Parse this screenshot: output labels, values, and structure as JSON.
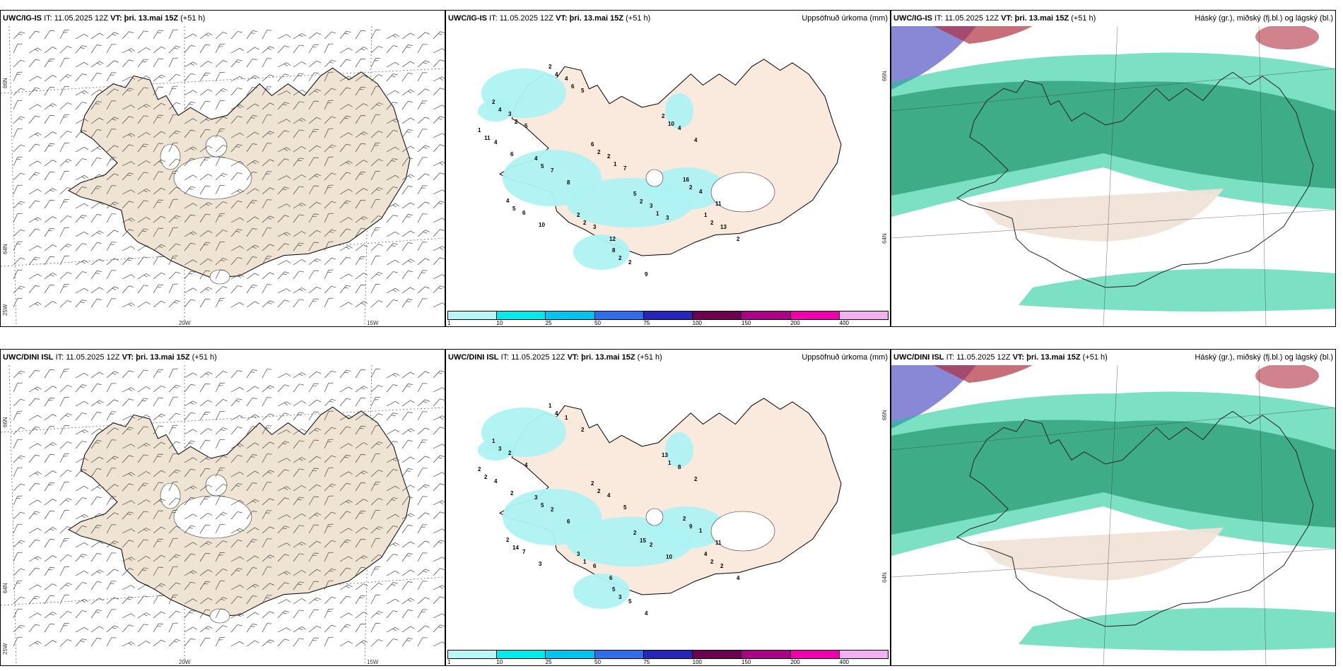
{
  "rows": [
    {
      "model": "UWC/IG-IS",
      "it_label": "IT:",
      "it_value": "11.05.2025 12Z",
      "vt_label": "VT:",
      "vt_value": "þri. 13.mai 15Z",
      "lead": "(+51 h)",
      "precip_title": "Uppsöfnuð úrkoma (mm)",
      "cloud_title": "Háský (gr.), miðský (fj.bl.) og lágský (bl.)",
      "precip_values": [
        "2",
        "2",
        "6",
        "5",
        "16",
        "8",
        "4",
        "4",
        "2",
        "2",
        "1",
        "1",
        "3",
        "4",
        "2",
        "3",
        "4",
        "2",
        "7",
        "6",
        "4",
        "3",
        "13",
        "4",
        "5",
        "5",
        "7",
        "3",
        "11",
        "9",
        "8",
        "10",
        "4",
        "12",
        "2",
        "6",
        "4",
        "4",
        "2",
        "2",
        "2",
        "2",
        "5",
        "5",
        "10",
        "2",
        "2",
        "11",
        "2",
        "6",
        "1",
        "1"
      ]
    },
    {
      "model": "UWC/DINI ISL",
      "it_label": "IT:",
      "it_value": "11.05.2025 12Z",
      "vt_label": "VT:",
      "vt_value": "þri. 13.mai 15Z",
      "lead": "(+51 h)",
      "precip_title": "Uppsöfnuð úrkoma (mm)",
      "cloud_title": "Háský (gr.), miðský (fj.bl.) og lágský (bl.)",
      "precip_values": [
        "1",
        "1",
        "2",
        "2",
        "2",
        "5",
        "3",
        "2",
        "13",
        "3",
        "4",
        "2",
        "2",
        "1",
        "4",
        "2",
        "1",
        "5",
        "2",
        "7",
        "8",
        "6",
        "2",
        "4",
        "4",
        "2",
        "5",
        "10",
        "11",
        "4",
        "6",
        "3",
        "2",
        "6",
        "4",
        "2",
        "3",
        "4",
        "2",
        "15",
        "9",
        "3",
        "5",
        "14",
        "1",
        "1",
        "2",
        "2"
      ]
    }
  ],
  "axes": {
    "lat_top": "66N",
    "lat_bottom": "64N",
    "lon_left": "25W",
    "lon_mid": "20W",
    "lon_right": "15W"
  },
  "colorbar": {
    "labels": [
      "1",
      "10",
      "25",
      "50",
      "75",
      "100",
      "150",
      "200",
      "400"
    ],
    "colors": [
      "#b8f5f5",
      "#00eaea",
      "#00c4ee",
      "#2f6ee8",
      "#2626b8",
      "#6b0050",
      "#aa0088",
      "#ee00aa",
      "#f3b0f0"
    ]
  },
  "colors": {
    "land_wind": "#efe3d3",
    "land_precip": "#faeadd",
    "precip_light": "#aef2f2",
    "cloud_low": "#34a37c",
    "cloud_mid": "#10c690",
    "cloud_high": "#6060c8",
    "cloud_high_red": "#b03040"
  }
}
